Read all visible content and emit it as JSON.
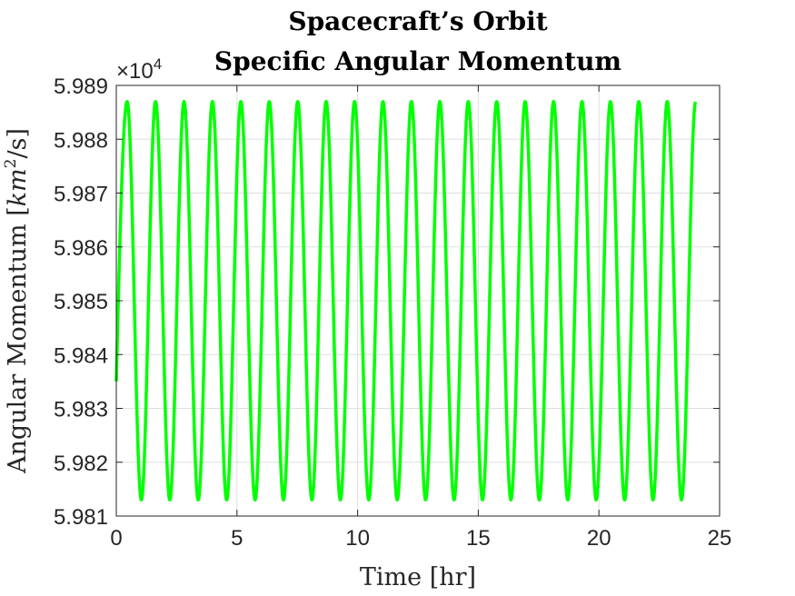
{
  "chart_data": {
    "type": "line",
    "title_line1": "Spacecraft’s Orbit",
    "title_line2": "Specific Angular Momentum",
    "xlabel": "Time [hr]",
    "ylabel_prefix": "Angular Momentum [",
    "ylabel_unit_base": "km",
    "ylabel_unit_sup": "2",
    "ylabel_suffix": "/s]",
    "y_exponent_base": "×10",
    "y_exponent_power": "4",
    "xlim": [
      0,
      25
    ],
    "ylim": [
      59810,
      59890
    ],
    "xticks": [
      0,
      5,
      10,
      15,
      20,
      25
    ],
    "xtick_labels": [
      "0",
      "5",
      "10",
      "15",
      "20",
      "25"
    ],
    "yticks": [
      59810,
      59820,
      59830,
      59840,
      59850,
      59860,
      59870,
      59880,
      59890
    ],
    "ytick_labels": [
      "5.981",
      "5.982",
      "5.983",
      "5.984",
      "5.985",
      "5.986",
      "5.987",
      "5.988",
      "5.989"
    ],
    "grid": true,
    "series": [
      {
        "color": "#00ff00",
        "x_start": 0,
        "x_end": 24,
        "y_start": 59835,
        "y_min": 59813,
        "y_max": 59887,
        "period_hr": 1.178,
        "first_peak_hr": 0.45
      }
    ]
  }
}
